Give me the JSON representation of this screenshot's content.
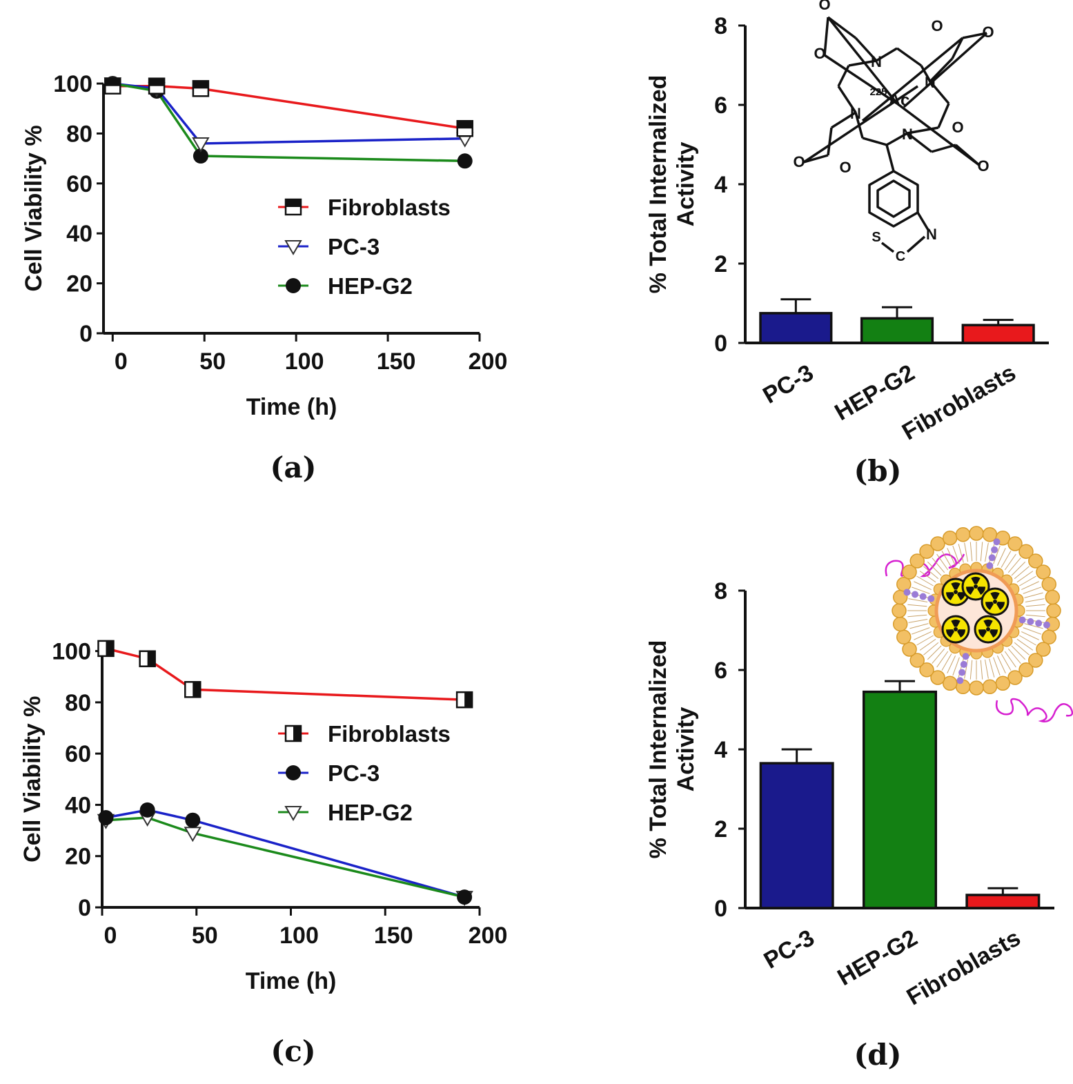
{
  "chart_data": [
    {
      "panel": "(a)",
      "type": "line",
      "xlabel": "Time (h)",
      "ylabel": "Cell Viability %",
      "xlim": [
        -5,
        200
      ],
      "ylim": [
        0,
        105
      ],
      "xticks": [
        0,
        50,
        100,
        150,
        200
      ],
      "yticks": [
        0,
        20,
        40,
        60,
        80,
        100
      ],
      "legend_position": "center-right",
      "series": [
        {
          "name": "Fibroblasts",
          "color": "#e8191c",
          "marker": "half-filled-square-top",
          "x": [
            0,
            24,
            48,
            192
          ],
          "y": [
            99,
            99,
            98,
            82
          ]
        },
        {
          "name": "PC-3",
          "color": "#1a22c8",
          "marker": "open-triangle-down",
          "x": [
            0,
            24,
            48,
            192
          ],
          "y": [
            100,
            98,
            76,
            78
          ]
        },
        {
          "name": "HEP-G2",
          "color": "#1b8a1b",
          "marker": "filled-circle",
          "x": [
            0,
            24,
            48,
            192
          ],
          "y": [
            100,
            97,
            71,
            69
          ]
        }
      ]
    },
    {
      "panel": "(b)",
      "type": "bar",
      "ylabel": "% Total Internalized Activity",
      "ylim": [
        0,
        8
      ],
      "yticks": [
        0,
        2,
        4,
        6,
        8
      ],
      "categories": [
        "PC-3",
        "HEP-G2",
        "Fibroblasts"
      ],
      "values": [
        0.75,
        0.62,
        0.45
      ],
      "errors": [
        0.35,
        0.28,
        0.13
      ],
      "colors": [
        "#1a1a8c",
        "#138013",
        "#e8191c"
      ]
    },
    {
      "panel": "(c)",
      "type": "line",
      "xlabel": "Time (h)",
      "ylabel": "Cell Viability %",
      "xlim": [
        0,
        200
      ],
      "ylim": [
        0,
        105
      ],
      "xticks": [
        0,
        50,
        100,
        150,
        200
      ],
      "yticks": [
        0,
        20,
        40,
        60,
        80,
        100
      ],
      "legend_position": "center-right",
      "series": [
        {
          "name": "Fibroblasts",
          "color": "#e8191c",
          "marker": "half-filled-square-right",
          "x": [
            2,
            24,
            48,
            192
          ],
          "y": [
            101,
            97,
            85,
            81
          ]
        },
        {
          "name": "PC-3",
          "color": "#1a22c8",
          "marker": "filled-circle",
          "x": [
            2,
            24,
            48,
            192
          ],
          "y": [
            35,
            38,
            34,
            4
          ]
        },
        {
          "name": "HEP-G2",
          "color": "#1b8a1b",
          "marker": "open-triangle-down",
          "x": [
            2,
            24,
            48,
            192
          ],
          "y": [
            34,
            35,
            29,
            4
          ]
        }
      ]
    },
    {
      "panel": "(d)",
      "type": "bar",
      "ylabel": "% Total Internalized Activity",
      "ylim": [
        0,
        8
      ],
      "yticks": [
        0,
        2,
        4,
        6,
        8
      ],
      "categories": [
        "PC-3",
        "HEP-G2",
        "Fibroblasts"
      ],
      "values": [
        3.65,
        5.45,
        0.33
      ],
      "errors": [
        0.35,
        0.27,
        0.17
      ],
      "colors": [
        "#1a1a8c",
        "#138013",
        "#e8191c"
      ]
    }
  ],
  "panel_labels": {
    "a": "(a)",
    "b": "(b)",
    "c": "(c)",
    "d": "(d)"
  },
  "ylabel_bar": {
    "line1": "% Total Internalized",
    "line2": "Activity"
  },
  "molecule": {
    "metal": "Ac",
    "isotope": "225",
    "atoms": {
      "O": "O",
      "N": "N",
      "S": "S",
      "C": "C"
    }
  }
}
